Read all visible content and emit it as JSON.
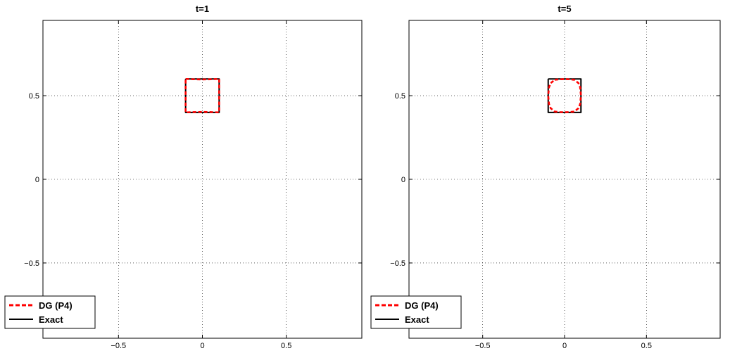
{
  "chart_data": [
    {
      "type": "line",
      "title": "t=1",
      "xlabel": "",
      "ylabel": "",
      "xlim": [
        -0.95,
        0.95
      ],
      "ylim": [
        -0.95,
        0.95
      ],
      "xticks": [
        -0.5,
        0,
        0.5
      ],
      "yticks": [
        -0.5,
        0,
        0.5
      ],
      "xtick_labels": [
        "−0.5",
        "0",
        "0.5"
      ],
      "ytick_labels": [
        "−0.5",
        "0",
        "0.5"
      ],
      "grid": true,
      "legend_position": "bottom-left",
      "series": [
        {
          "name": "DG (P4)",
          "color": "#ff0000",
          "style": "dashed",
          "x": [
            -0.1,
            -0.05,
            0.0,
            0.05,
            0.1,
            0.1,
            0.1,
            0.1,
            0.1,
            0.05,
            0.0,
            -0.05,
            -0.1,
            -0.1,
            -0.1,
            -0.1,
            -0.1
          ],
          "y": [
            0.6,
            0.598,
            0.597,
            0.598,
            0.6,
            0.55,
            0.5,
            0.45,
            0.4,
            0.402,
            0.403,
            0.402,
            0.4,
            0.45,
            0.5,
            0.55,
            0.6
          ]
        },
        {
          "name": "Exact",
          "color": "#000000",
          "style": "solid",
          "x": [
            -0.1,
            0.1,
            0.1,
            -0.1,
            -0.1
          ],
          "y": [
            0.6,
            0.6,
            0.4,
            0.4,
            0.6
          ]
        }
      ]
    },
    {
      "type": "line",
      "title": "t=5",
      "xlabel": "",
      "ylabel": "",
      "xlim": [
        -0.95,
        0.95
      ],
      "ylim": [
        -0.95,
        0.95
      ],
      "xticks": [
        -0.5,
        0,
        0.5
      ],
      "yticks": [
        -0.5,
        0,
        0.5
      ],
      "xtick_labels": [
        "−0.5",
        "0",
        "0.5"
      ],
      "ytick_labels": [
        "−0.5",
        "0",
        "0.5"
      ],
      "grid": true,
      "legend_position": "bottom-left",
      "series": [
        {
          "name": "DG (P4)",
          "color": "#ff0000",
          "style": "dashed",
          "x": [
            -0.06,
            -0.03,
            0.0,
            0.03,
            0.06,
            0.085,
            0.095,
            0.1,
            0.095,
            0.085,
            0.06,
            0.03,
            0.0,
            -0.03,
            -0.06,
            -0.085,
            -0.095,
            -0.1,
            -0.095,
            -0.085,
            -0.06
          ],
          "y": [
            0.595,
            0.598,
            0.599,
            0.598,
            0.595,
            0.575,
            0.55,
            0.5,
            0.45,
            0.425,
            0.405,
            0.402,
            0.401,
            0.402,
            0.405,
            0.425,
            0.45,
            0.5,
            0.55,
            0.575,
            0.595
          ]
        },
        {
          "name": "Exact",
          "color": "#000000",
          "style": "solid",
          "x": [
            -0.1,
            0.1,
            0.1,
            -0.1,
            -0.1
          ],
          "y": [
            0.6,
            0.6,
            0.4,
            0.4,
            0.6
          ]
        }
      ]
    }
  ]
}
